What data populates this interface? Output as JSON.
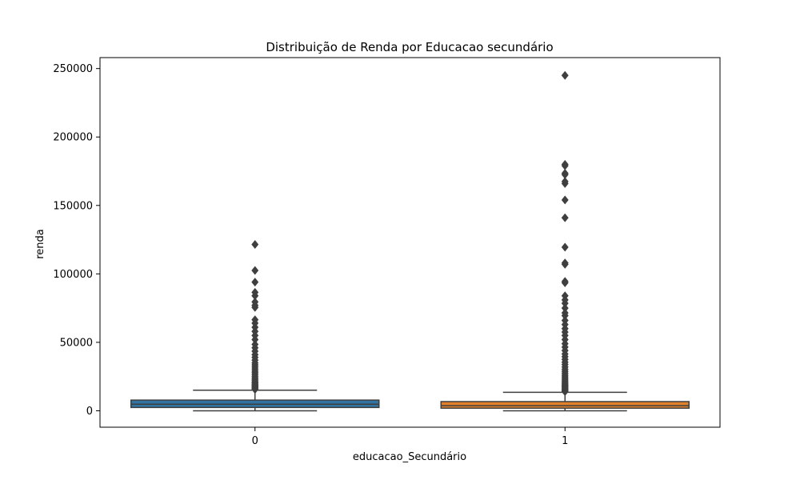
{
  "chart_data": {
    "type": "box",
    "title": "Distribuição de Renda por Educacao secundário",
    "xlabel": "educacao_Secundário",
    "ylabel": "renda",
    "categories": [
      "0",
      "1"
    ],
    "ylim": [
      -12000,
      258000
    ],
    "yticks": [
      0,
      50000,
      100000,
      150000,
      200000,
      250000
    ],
    "yticklabels": [
      "0",
      "50000",
      "100000",
      "150000",
      "200000",
      "250000"
    ],
    "grid": false,
    "legend": "none",
    "boxes": [
      {
        "category": "0",
        "color": "#3274a1",
        "whisker_low": 0,
        "q1": 2400,
        "median": 4800,
        "q3": 7800,
        "whisker_high": 15000,
        "outliers": [
          15600,
          16200,
          16900,
          17500,
          18200,
          18800,
          19500,
          20300,
          21000,
          22000,
          23000,
          24000,
          25200,
          26500,
          27800,
          29000,
          30500,
          32000,
          33500,
          35000,
          37000,
          39000,
          41000,
          43500,
          46000,
          48500,
          52000,
          55000,
          58000,
          61000,
          64000,
          66500,
          75500,
          77000,
          79500,
          84000,
          86500,
          94000,
          102500,
          121500
        ]
      },
      {
        "category": "1",
        "color": "#e1812c",
        "whisker_low": 0,
        "q1": 1900,
        "median": 3700,
        "q3": 6700,
        "whisker_high": 13500,
        "outliers": [
          14000,
          14600,
          15200,
          15900,
          16600,
          17300,
          18000,
          18800,
          19600,
          20500,
          21500,
          22500,
          23600,
          24800,
          26000,
          27400,
          28800,
          30300,
          32000,
          33800,
          35500,
          37500,
          39500,
          41500,
          44000,
          46500,
          49000,
          52000,
          55000,
          57500,
          60000,
          63000,
          66000,
          69500,
          71500,
          75000,
          78500,
          81000,
          84000,
          93500,
          94500,
          107000,
          108000,
          119500,
          141000,
          154000,
          166000,
          167500,
          172500,
          173500,
          179000,
          180000,
          245000
        ]
      }
    ]
  }
}
